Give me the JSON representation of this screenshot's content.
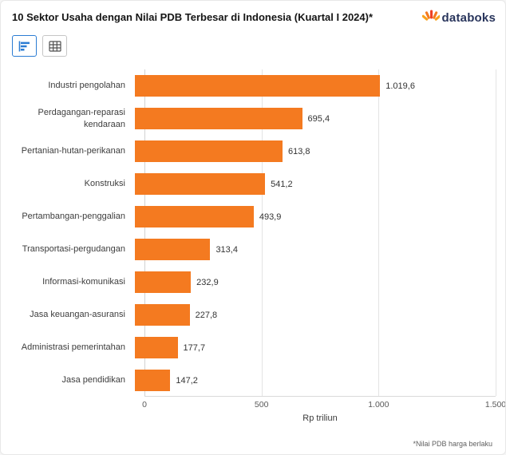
{
  "header": {
    "title": "10 Sektor Usaha dengan Nilai PDB Terbesar di Indonesia (Kuartal I 2024)*",
    "brand": "databoks",
    "brand_color": "#29355c"
  },
  "toolbar": {
    "chart_view_icon": "bar-chart-icon",
    "table_view_icon": "table-icon",
    "active_color": "#2b7cd3"
  },
  "chart_data": {
    "type": "bar",
    "orientation": "horizontal",
    "categories": [
      "Industri pengolahan",
      "Perdagangan-reparasi kendaraan",
      "Pertanian-hutan-perikanan",
      "Konstruksi",
      "Pertambangan-penggalian",
      "Transportasi-pergudangan",
      "Informasi-komunikasi",
      "Jasa keuangan-asuransi",
      "Administrasi pemerintahan",
      "Jasa pendidikan"
    ],
    "values": [
      1019.6,
      695.4,
      613.8,
      541.2,
      493.9,
      313.4,
      232.9,
      227.8,
      177.7,
      147.2
    ],
    "value_labels": [
      "1.019,6",
      "695,4",
      "613,8",
      "541,2",
      "493,9",
      "313,4",
      "232,9",
      "227,8",
      "177,7",
      "147,2"
    ],
    "title": "10 Sektor Usaha dengan Nilai PDB Terbesar di Indonesia (Kuartal I 2024)*",
    "xlabel": "Rp triliun",
    "ylabel": "",
    "xlim": [
      0,
      1500
    ],
    "xticks": [
      0,
      500,
      1000,
      1500
    ],
    "xtick_labels": [
      "0",
      "500",
      "1.000",
      "1.500"
    ],
    "bar_color": "#f47a20",
    "grid": true,
    "legend": false
  },
  "footer": {
    "note": "*Nilai PDB harga berlaku"
  }
}
